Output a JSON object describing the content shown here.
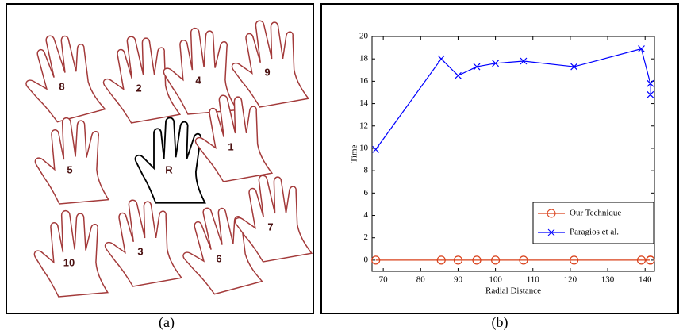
{
  "figure_a": {
    "caption": "(a)",
    "hand_labels": [
      "8",
      "2",
      "4",
      "9",
      "5",
      "R",
      "1",
      "10",
      "3",
      "6",
      "7"
    ]
  },
  "chart_data": {
    "type": "line",
    "caption": "(b)",
    "xlabel": "Radial Distance",
    "ylabel": "Time",
    "xlim": [
      67,
      142.5
    ],
    "ylim": [
      -1,
      20
    ],
    "xticks": [
      70,
      80,
      90,
      100,
      110,
      120,
      130,
      140
    ],
    "yticks": [
      0,
      2,
      4,
      6,
      8,
      10,
      12,
      14,
      16,
      18,
      20
    ],
    "legend": "lower right",
    "series": [
      {
        "name": "Our Technique",
        "color": "#d9401a",
        "marker": "o",
        "x": [
          68,
          85.5,
          90,
          95,
          100,
          107.5,
          121,
          139,
          141.4,
          141.4
        ],
        "values": [
          0,
          0,
          0,
          0,
          0,
          0,
          0,
          0,
          0,
          0
        ]
      },
      {
        "name": "Paragios et al.",
        "color": "#0000ff",
        "marker": "x",
        "x": [
          68,
          85.5,
          90,
          95,
          100,
          107.5,
          121,
          139,
          141.4,
          141.4
        ],
        "values": [
          9.9,
          18,
          16.5,
          17.3,
          17.6,
          17.8,
          17.3,
          18.9,
          15.8,
          14.8
        ]
      }
    ]
  }
}
